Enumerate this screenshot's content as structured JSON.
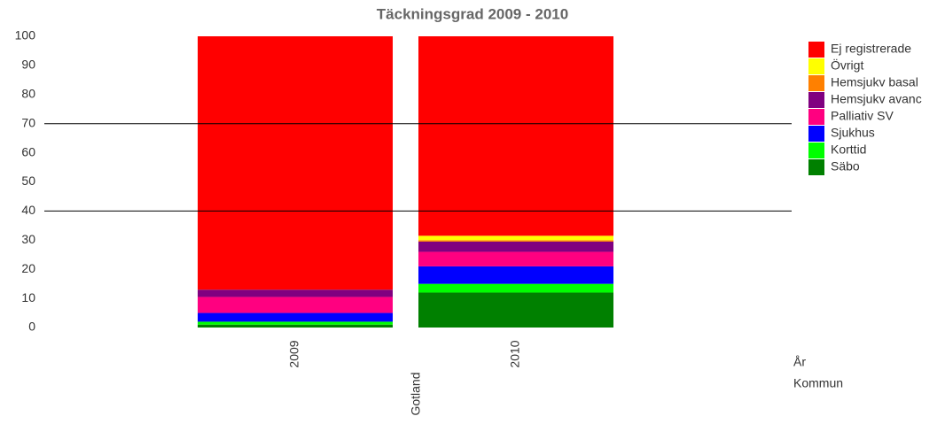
{
  "chart_data": {
    "type": "stacked-bar",
    "title": "Täckningsgrad 2009 - 2010",
    "categories": [
      "2009",
      "2010"
    ],
    "group_label": "Gotland",
    "axis_labels": [
      "År",
      "Kommun"
    ],
    "series": [
      {
        "name": "Säbo",
        "color": "#008000",
        "values": [
          1,
          12
        ]
      },
      {
        "name": "Korttid",
        "color": "#00ff00",
        "values": [
          1,
          3
        ]
      },
      {
        "name": "Sjukhus",
        "color": "#0000ff",
        "values": [
          3,
          6
        ]
      },
      {
        "name": "Palliativ SV",
        "color": "#ff0080",
        "values": [
          5.5,
          5
        ]
      },
      {
        "name": "Hemsjukv avanc",
        "color": "#800080",
        "values": [
          2.5,
          3.5
        ]
      },
      {
        "name": "Hemsjukv basal",
        "color": "#ff8000",
        "values": [
          0,
          0.5
        ]
      },
      {
        "name": "Övrigt",
        "color": "#ffff00",
        "values": [
          0,
          1.5
        ]
      },
      {
        "name": "Ej registrerade",
        "color": "#ff0000",
        "values": [
          87,
          68.5
        ]
      }
    ],
    "ylim": [
      0,
      100
    ],
    "yticks": [
      0,
      10,
      20,
      30,
      40,
      50,
      60,
      70,
      80,
      90,
      100
    ],
    "reference_lines": [
      70,
      40
    ],
    "legend": "right"
  }
}
